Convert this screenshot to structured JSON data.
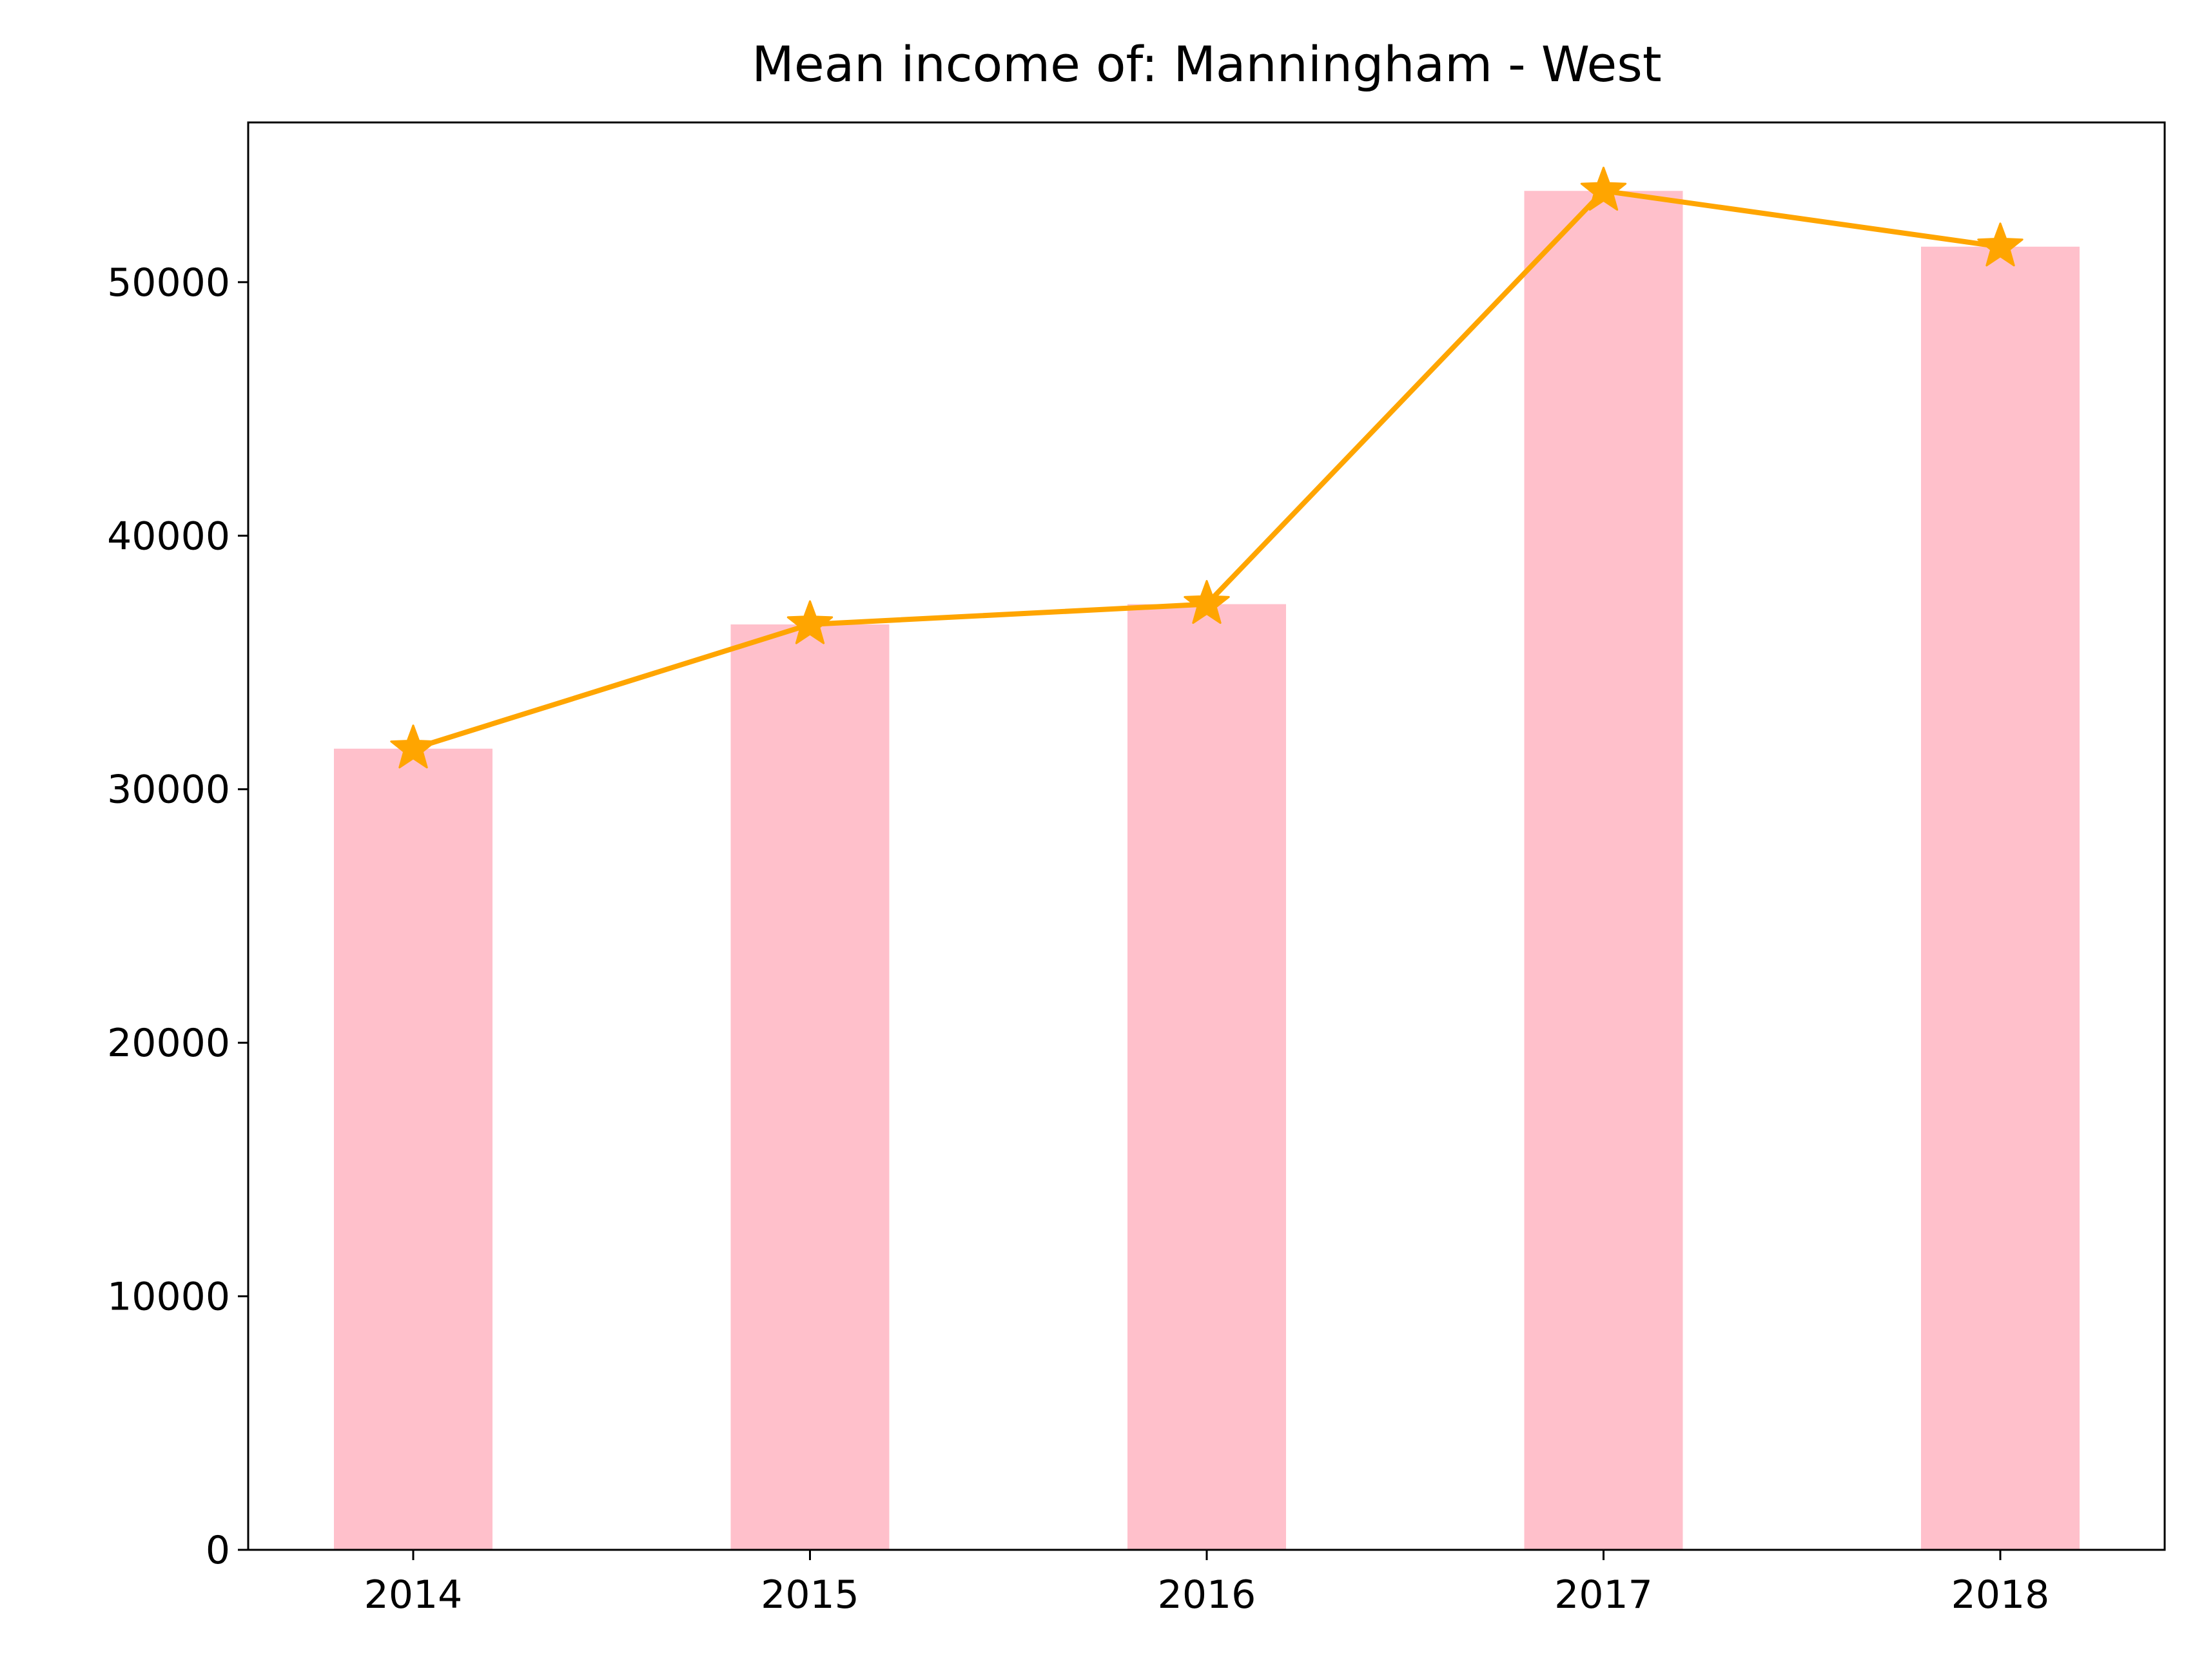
{
  "chart_data": {
    "type": "bar",
    "title": "Mean income of: Manningham - West",
    "xlabel": "",
    "ylabel": "",
    "categories": [
      "2014",
      "2015",
      "2016",
      "2017",
      "2018"
    ],
    "series": [
      {
        "type": "bar",
        "values": [
          31600,
          36500,
          37300,
          53600,
          51400
        ]
      },
      {
        "type": "line",
        "marker": "star",
        "values": [
          31600,
          36500,
          37300,
          53600,
          51400
        ]
      }
    ],
    "ylim": [
      0,
      56300
    ],
    "yticks": [
      "0",
      "10000",
      "20000",
      "30000",
      "40000",
      "50000"
    ],
    "grid": false,
    "colors": {
      "bar": "#ffc0cb",
      "line": "#ffa500",
      "axes": "#000000"
    }
  }
}
